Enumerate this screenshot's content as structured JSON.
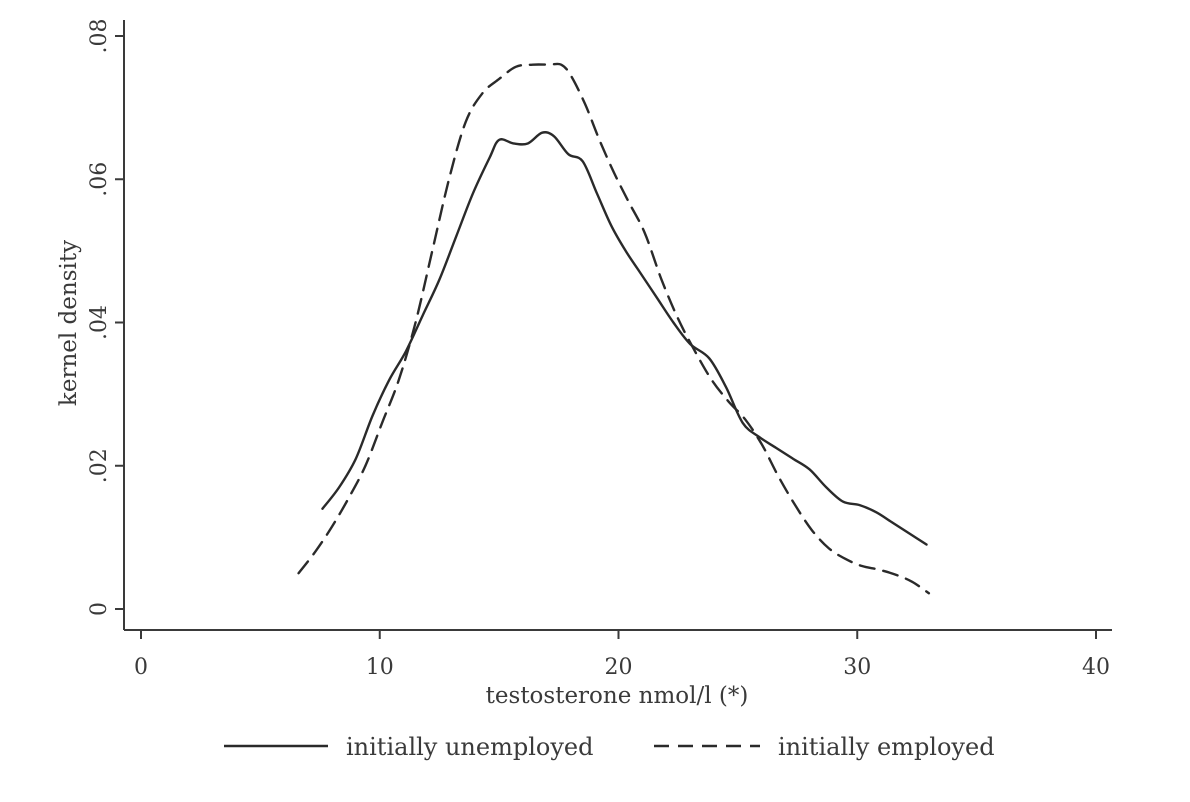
{
  "chart_data": {
    "type": "line",
    "title": "",
    "xlabel": "testosterone nmol/l (*)",
    "ylabel": "kernel density",
    "xlim": [
      0,
      40
    ],
    "ylim": [
      0,
      0.08
    ],
    "xticks": [
      0,
      10,
      20,
      30,
      40
    ],
    "xtick_labels": [
      "0",
      "10",
      "20",
      "30",
      "40"
    ],
    "yticks": [
      0,
      0.02,
      0.04,
      0.06,
      0.08
    ],
    "ytick_labels": [
      "0",
      ".02",
      ".04",
      ".06",
      ".08"
    ],
    "grid": false,
    "legend_position": "bottom",
    "series": [
      {
        "name": "initially unemployed",
        "style": "solid",
        "color": "#2a2a2a",
        "x": [
          7.6,
          8.3,
          9.0,
          9.7,
          10.4,
          11.1,
          11.8,
          12.5,
          13.2,
          13.9,
          14.6,
          15.0,
          15.6,
          16.2,
          16.8,
          17.3,
          17.9,
          18.5,
          19.1,
          19.7,
          20.3,
          20.9,
          21.6,
          22.3,
          23.0,
          23.8,
          24.5,
          25.2,
          25.9,
          26.6,
          27.3,
          28.0,
          28.7,
          29.4,
          30.1,
          30.8,
          31.5,
          32.2,
          32.9
        ],
        "y": [
          0.014,
          0.017,
          0.021,
          0.027,
          0.032,
          0.036,
          0.041,
          0.046,
          0.052,
          0.058,
          0.063,
          0.0655,
          0.065,
          0.065,
          0.0665,
          0.066,
          0.0635,
          0.0625,
          0.058,
          0.0535,
          0.05,
          0.047,
          0.0435,
          0.04,
          0.037,
          0.035,
          0.031,
          0.026,
          0.024,
          0.0225,
          0.021,
          0.0195,
          0.017,
          0.015,
          0.0145,
          0.0135,
          0.012,
          0.0105,
          0.009
        ]
      },
      {
        "name": "initially employed",
        "style": "dashed",
        "color": "#2a2a2a",
        "x": [
          6.6,
          7.3,
          8.0,
          8.7,
          9.4,
          10.1,
          10.8,
          11.5,
          12.2,
          12.9,
          13.6,
          14.3,
          15.0,
          15.7,
          16.4,
          17.1,
          17.6,
          18.0,
          18.6,
          19.2,
          19.8,
          20.4,
          21.1,
          21.8,
          22.5,
          23.2,
          23.9,
          24.6,
          25.3,
          26.0,
          26.7,
          27.4,
          28.1,
          28.8,
          29.5,
          30.2,
          30.9,
          31.6,
          32.3,
          33.0
        ],
        "y": [
          0.005,
          0.008,
          0.0115,
          0.0155,
          0.02,
          0.026,
          0.032,
          0.04,
          0.05,
          0.06,
          0.068,
          0.072,
          0.074,
          0.0757,
          0.076,
          0.076,
          0.076,
          0.0745,
          0.0705,
          0.0655,
          0.061,
          0.057,
          0.0525,
          0.046,
          0.0405,
          0.036,
          0.032,
          0.029,
          0.0265,
          0.023,
          0.0185,
          0.0145,
          0.011,
          0.0085,
          0.007,
          0.006,
          0.0055,
          0.0048,
          0.0038,
          0.0022
        ]
      }
    ]
  }
}
